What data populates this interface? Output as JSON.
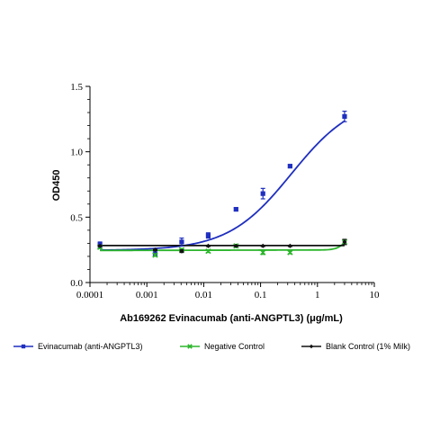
{
  "chart_data": {
    "type": "scatter",
    "xlabel": "Ab169262 Evinacumab (anti-ANGPTL3) (μg/mL)",
    "ylabel": "OD450",
    "xscale": "log",
    "xlim": [
      0.0001,
      10
    ],
    "ylim": [
      0.0,
      1.5
    ],
    "x_ticks": [
      "0.0001",
      "0.001",
      "0.01",
      "0.1",
      "1",
      "10"
    ],
    "y_ticks": [
      "0.0",
      "0.5",
      "1.0",
      "1.5"
    ],
    "grid": false,
    "legend_position": "bottom",
    "series": [
      {
        "name": "Evinacumab (anti-ANGPTL3)",
        "color": "#1f2fbf",
        "marker": "square",
        "x": [
          0.00015,
          0.0014,
          0.0041,
          0.012,
          0.037,
          0.11,
          0.33,
          3.0
        ],
        "y": [
          0.29,
          0.22,
          0.31,
          0.36,
          0.56,
          0.68,
          0.89,
          1.27
        ],
        "err": [
          0.02,
          0.015,
          0.03,
          0.02,
          0.01,
          0.04,
          0.01,
          0.04
        ],
        "fit_curve": "sigmoidal"
      },
      {
        "name": "Negative Control",
        "color": "#2bb52b",
        "marker": "x",
        "x": [
          0.00015,
          0.0014,
          0.0041,
          0.012,
          0.037,
          0.11,
          0.33,
          3.0
        ],
        "y": [
          0.27,
          0.21,
          0.25,
          0.24,
          0.28,
          0.23,
          0.23,
          0.31
        ],
        "err": [
          0.01,
          0.01,
          0.01,
          0.01,
          0.01,
          0.015,
          0.01,
          0.02
        ],
        "fit_curve": "flat"
      },
      {
        "name": "Blank Control (1% Milk)",
        "color": "#111111",
        "marker": "diamond",
        "x": [
          0.00015,
          0.0014,
          0.0041,
          0.012,
          0.037,
          0.11,
          0.33,
          3.0
        ],
        "y": [
          0.28,
          0.25,
          0.24,
          0.28,
          0.28,
          0.28,
          0.28,
          0.31
        ],
        "err": [
          0.005,
          0.005,
          0.01,
          0.005,
          0.005,
          0.005,
          0.005,
          0.02
        ],
        "fit_curve": "flat"
      }
    ]
  }
}
